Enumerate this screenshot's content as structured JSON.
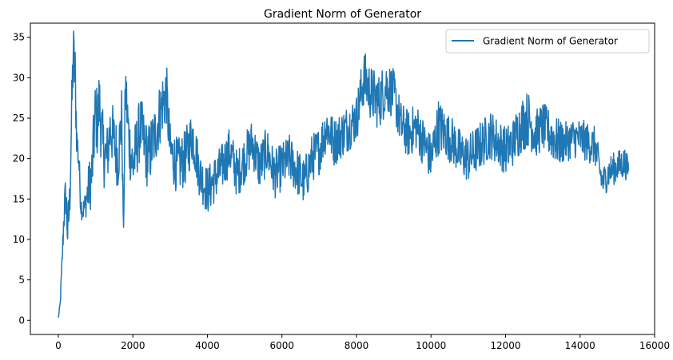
{
  "chart_data": {
    "type": "line",
    "title": "Gradient Norm of Generator",
    "xlabel": "",
    "ylabel": "",
    "xlim": [
      -750,
      16000
    ],
    "ylim": [
      -1.75,
      36.75
    ],
    "xticks": [
      0,
      2000,
      4000,
      6000,
      8000,
      10000,
      12000,
      14000,
      16000
    ],
    "xtick_labels": [
      "0",
      "2000",
      "4000",
      "6000",
      "8000",
      "10000",
      "12000",
      "14000",
      "16000"
    ],
    "yticks": [
      0,
      5,
      10,
      15,
      20,
      25,
      30,
      35
    ],
    "ytick_labels": [
      "0",
      "5",
      "10",
      "15",
      "20",
      "25",
      "30",
      "35"
    ],
    "grid": false,
    "legend_position": "top-right",
    "series": [
      {
        "name": "Gradient Norm of Generator",
        "color": "#1f77b4",
        "x": [
          0,
          50,
          100,
          150,
          200,
          250,
          300,
          350,
          400,
          450,
          500,
          550,
          600,
          650,
          700,
          800,
          900,
          1000,
          1050,
          1100,
          1200,
          1300,
          1400,
          1500,
          1600,
          1700,
          1750,
          1800,
          1900,
          2000,
          2200,
          2400,
          2600,
          2800,
          2900,
          3000,
          3200,
          3400,
          3600,
          3800,
          4000,
          4200,
          4400,
          4600,
          4800,
          5000,
          5200,
          5400,
          5600,
          5800,
          6000,
          6200,
          6400,
          6600,
          6800,
          7000,
          7200,
          7400,
          7600,
          7800,
          8000,
          8200,
          8400,
          8600,
          8800,
          9000,
          9200,
          9400,
          9600,
          9800,
          10000,
          10200,
          10400,
          10600,
          10800,
          11000,
          11200,
          11400,
          11600,
          11800,
          12000,
          12200,
          12400,
          12600,
          12800,
          13000,
          13200,
          13400,
          13600,
          13800,
          14000,
          14200,
          14400,
          14600,
          14800,
          15000,
          15200,
          15300
        ],
        "y": [
          0.3,
          2,
          7,
          13,
          15.5,
          11,
          14,
          24,
          33,
          30,
          22,
          20,
          14.5,
          13.5,
          14,
          16,
          18,
          26,
          24,
          27,
          21,
          20,
          24,
          22,
          20,
          25,
          11,
          29,
          22,
          19,
          24,
          20,
          23,
          27,
          28,
          21,
          19,
          20,
          23,
          18,
          16,
          17.5,
          19,
          21,
          18,
          20,
          22,
          19,
          21,
          18,
          19,
          20,
          18.5,
          17,
          20,
          21,
          24,
          22,
          23,
          24,
          25,
          30,
          28,
          27,
          29,
          28,
          24,
          23,
          24,
          22,
          20,
          24,
          23,
          22,
          20.5,
          20,
          21,
          22,
          23,
          22,
          21,
          22,
          24,
          25,
          23,
          24,
          23,
          22,
          22,
          22.5,
          22.5,
          22,
          21.5,
          17,
          18.5,
          19,
          19.5,
          18.5
        ],
        "noise_band": [
          0.1,
          0.5,
          1.5,
          2.5,
          3,
          3.5,
          3.5,
          4,
          4.5,
          4.5,
          3,
          2.5,
          1.5,
          1.5,
          1.5,
          3,
          4,
          4.5,
          4.5,
          4.5,
          4.5,
          4,
          4,
          4,
          4,
          4,
          0.5,
          4,
          4,
          4,
          4,
          4,
          4,
          4,
          4,
          3.5,
          3.5,
          3.5,
          3.5,
          3,
          3,
          3,
          3,
          3,
          3,
          3,
          3,
          3,
          3,
          3,
          3,
          3,
          3,
          3,
          3,
          3,
          3,
          3,
          3,
          3,
          3,
          3.5,
          3.5,
          3.5,
          3.5,
          3,
          3,
          3,
          3,
          3,
          3,
          3.5,
          3,
          3,
          3,
          3,
          3,
          3,
          3,
          3,
          3,
          3,
          3.5,
          3.5,
          3,
          3,
          3,
          3,
          2.5,
          2.5,
          2.5,
          2.5,
          2.5,
          2,
          2,
          2,
          2,
          1.5
        ]
      }
    ]
  }
}
